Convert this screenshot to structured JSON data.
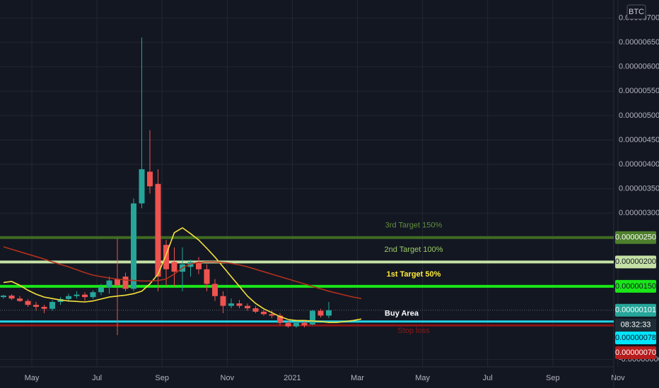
{
  "chart_data": {
    "type": "candlestick",
    "currency": "BTC",
    "up_color": "#26a69a",
    "down_color": "#ef5350",
    "grid": true,
    "ylim": [
      -1.5e-07,
      7.37e-06
    ],
    "yticks": [
      {
        "value": 7e-06,
        "label": "0.00000700"
      },
      {
        "value": 6.5e-06,
        "label": "0.00000650"
      },
      {
        "value": 6e-06,
        "label": "0.00000600"
      },
      {
        "value": 5.5e-06,
        "label": "0.00000550"
      },
      {
        "value": 5e-06,
        "label": "0.00000500"
      },
      {
        "value": 4.5e-06,
        "label": "0.00000450"
      },
      {
        "value": 4e-06,
        "label": "0.00000400"
      },
      {
        "value": 3.5e-06,
        "label": "0.00000350"
      },
      {
        "value": 3e-06,
        "label": "0.00000300"
      },
      {
        "value": 0,
        "label": "-0.00000000"
      }
    ],
    "x_labels": [
      "May",
      "Jul",
      "Sep",
      "Nov",
      "2021",
      "Mar",
      "May",
      "Jul",
      "Sep",
      "Nov"
    ],
    "open": [
      1.28e-06,
      1.31e-06,
      1.25e-06,
      1.2e-06,
      1.12e-06,
      1.08e-06,
      1.04e-06,
      1.18e-06,
      1.24e-06,
      1.3e-06,
      1.33e-06,
      1.28e-06,
      1.38e-06,
      1.48e-06,
      1.65e-06,
      1.7e-06,
      1.45e-06,
      3.2e-06,
      3.85e-06,
      3.6e-06,
      2.35e-06,
      2e-06,
      1.8e-06,
      1.9e-06,
      2e-06,
      1.85e-06,
      1.55e-06,
      1.3e-06,
      1.1e-06,
      1.15e-06,
      1.1e-06,
      1.05e-06,
      9.8e-07,
      9.3e-07,
      9e-07,
      7.5e-07,
      6.8e-07,
      7.5e-07,
      7.2e-07,
      1e-06,
      9e-07,
      null,
      null,
      null,
      null
    ],
    "high": [
      1.33e-06,
      1.34e-06,
      1.3e-06,
      1.24e-06,
      1.18e-06,
      1.12e-06,
      1.22e-06,
      1.28e-06,
      1.35e-06,
      1.4e-06,
      1.38e-06,
      1.42e-06,
      1.55e-06,
      1.7e-06,
      2.48e-06,
      1.78e-06,
      3.3e-06,
      6.6e-06,
      4.7e-06,
      3.9e-06,
      2.45e-06,
      2.3e-06,
      2.3e-06,
      2.05e-06,
      2.1e-06,
      1.95e-06,
      1.65e-06,
      1.4e-06,
      1.25e-06,
      1.22e-06,
      1.15e-06,
      1.1e-06,
      1.02e-06,
      1e-06,
      9.5e-07,
      8e-07,
      7.8e-07,
      7.8e-07,
      1.02e-06,
      1.04e-06,
      1.18e-06,
      null,
      null,
      null,
      null
    ],
    "low": [
      1.25e-06,
      1.22e-06,
      1.18e-06,
      1.08e-06,
      1e-06,
      9.5e-07,
      1e-06,
      1.12e-06,
      1.18e-06,
      1.25e-06,
      1.2e-06,
      1.24e-06,
      1.32e-06,
      1.35e-06,
      5e-07,
      1.4e-06,
      1.4e-06,
      3.1e-06,
      3.4e-06,
      1.4e-06,
      1.5e-06,
      1.5e-06,
      1.4e-06,
      1.7e-06,
      1.75e-06,
      1.4e-06,
      1.2e-06,
      9.5e-07,
      1.05e-06,
      1.05e-06,
      1e-06,
      9.5e-07,
      9e-07,
      8.5e-07,
      7e-07,
      6.5e-07,
      6.5e-07,
      6.6e-07,
      7e-07,
      8.6e-07,
      8.5e-07,
      null,
      null,
      null,
      null
    ],
    "close": [
      1.31e-06,
      1.25e-06,
      1.2e-06,
      1.12e-06,
      1.08e-06,
      1.04e-06,
      1.18e-06,
      1.24e-06,
      1.3e-06,
      1.33e-06,
      1.28e-06,
      1.38e-06,
      1.48e-06,
      1.62e-06,
      1.52e-06,
      1.45e-06,
      3.2e-06,
      3.9e-06,
      3.55e-06,
      1.7e-06,
      1.85e-06,
      1.8e-06,
      1.95e-06,
      2e-06,
      1.85e-06,
      1.55e-06,
      1.3e-06,
      1.1e-06,
      1.15e-06,
      1.1e-06,
      1.05e-06,
      9.8e-07,
      9.3e-07,
      9e-07,
      7.5e-07,
      6.8e-07,
      7.5e-07,
      7e-07,
      1e-06,
      9e-07,
      1.01e-06,
      null,
      null,
      null,
      null
    ],
    "series": [
      {
        "color": "#f5e13b",
        "values": [
          1.58e-06,
          1.6e-06,
          1.52e-06,
          1.42e-06,
          1.34e-06,
          1.28e-06,
          1.25e-06,
          1.22e-06,
          1.2e-06,
          1.19e-06,
          1.18e-06,
          1.2e-06,
          1.24e-06,
          1.28e-06,
          1.3e-06,
          1.32e-06,
          1.35e-06,
          1.4e-06,
          1.55e-06,
          1.75e-06,
          2.15e-06,
          2.6e-06,
          2.7e-06,
          2.58e-06,
          2.45e-06,
          2.28e-06,
          2.1e-06,
          1.9e-06,
          1.7e-06,
          1.5e-06,
          1.3e-06,
          1.15e-06,
          1.04e-06,
          9.6e-07,
          8.8e-07,
          8.2e-07,
          8e-07,
          8e-07,
          7.9e-07,
          7.8e-07,
          7.6e-07,
          7.6e-07,
          7.8e-07,
          8e-07,
          8.3e-07
        ]
      },
      {
        "color": "#b2301c",
        "values": [
          2.31e-06,
          2.26e-06,
          2.21e-06,
          2.16e-06,
          2.11e-06,
          2.06e-06,
          2e-06,
          1.95e-06,
          1.9e-06,
          1.84e-06,
          1.78e-06,
          1.73e-06,
          1.7e-06,
          1.67e-06,
          1.65e-06,
          1.63e-06,
          1.62e-06,
          1.61e-06,
          1.61e-06,
          1.62e-06,
          1.65e-06,
          1.75e-06,
          1.88e-06,
          1.96e-06,
          1.99e-06,
          2e-06,
          2e-06,
          1.99e-06,
          1.97e-06,
          1.94e-06,
          1.9e-06,
          1.85e-06,
          1.8e-06,
          1.75e-06,
          1.7e-06,
          1.65e-06,
          1.6e-06,
          1.55e-06,
          1.5e-06,
          1.45e-06,
          1.4e-06,
          1.36e-06,
          1.32e-06,
          1.28e-06,
          1.25e-06
        ]
      }
    ],
    "levels": [
      {
        "name": "3rd Target 150%",
        "value": 2.5e-06,
        "value_label": "0.00000250",
        "color": "#3f6b22",
        "text_color": "#5f8f3c",
        "box_color": "#4d7f2c",
        "box_text": "#ffffff"
      },
      {
        "name": "2nd Target 100%",
        "value": 2e-06,
        "value_label": "0.00000200",
        "color": "#c5e1a5",
        "text_color": "#9ccc65",
        "box_color": "#c5e1a5",
        "box_text": "#131722"
      },
      {
        "name": "1st Target 50%",
        "value": 1.5e-06,
        "value_label": "0.00000150",
        "color": "#19e619",
        "text_color": "#ffeb3b",
        "box_color": "#19e619",
        "box_text": "#131722"
      },
      {
        "name": "Buy Area",
        "value": 7.8e-07,
        "value_label": "0.00000078",
        "color": "#26d3e6",
        "text_color": "#ffffff",
        "box_color": "#00e5ff",
        "box_text": "#131722"
      },
      {
        "name": "Stop loss",
        "value": 7e-07,
        "value_label": "0.00000070",
        "color": "#8e1414",
        "text_color": "#8e1a1a",
        "box_color": "#b71c1c",
        "box_text": "#ffffff"
      }
    ],
    "last_price": 1.01e-06,
    "last_price_label": "0.00000101",
    "countdown": "08:32:33"
  }
}
